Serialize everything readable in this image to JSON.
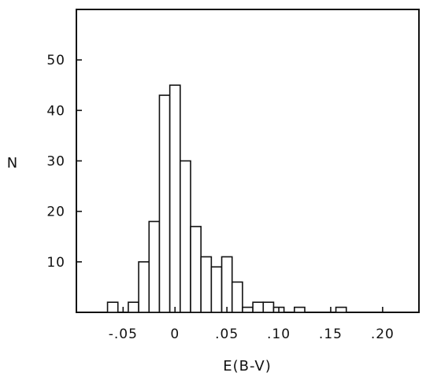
{
  "chart_data": {
    "type": "bar",
    "subtype": "histogram",
    "xlabel": "E(B-V)",
    "ylabel": "N",
    "xlim": [
      -0.095,
      0.235
    ],
    "ylim": [
      0,
      60
    ],
    "bin_width": 0.01,
    "grid": false,
    "legend": "none",
    "x_ticks": [
      {
        "value": -0.05,
        "label": "-.05"
      },
      {
        "value": 0,
        "label": "0"
      },
      {
        "value": 0.05,
        "label": ".05"
      },
      {
        "value": 0.1,
        "label": ".10"
      },
      {
        "value": 0.15,
        "label": ".15"
      },
      {
        "value": 0.2,
        "label": ".20"
      }
    ],
    "y_ticks": [
      {
        "value": 10,
        "label": "10"
      },
      {
        "value": 20,
        "label": "20"
      },
      {
        "value": 30,
        "label": "30"
      },
      {
        "value": 40,
        "label": "40"
      },
      {
        "value": 50,
        "label": "50"
      }
    ],
    "bins": [
      {
        "x_start": -0.065,
        "count": 2
      },
      {
        "x_start": -0.055,
        "count": 0
      },
      {
        "x_start": -0.045,
        "count": 2
      },
      {
        "x_start": -0.035,
        "count": 10
      },
      {
        "x_start": -0.025,
        "count": 18
      },
      {
        "x_start": -0.015,
        "count": 43
      },
      {
        "x_start": -0.005,
        "count": 45
      },
      {
        "x_start": 0.005,
        "count": 30
      },
      {
        "x_start": 0.015,
        "count": 17
      },
      {
        "x_start": 0.025,
        "count": 11
      },
      {
        "x_start": 0.035,
        "count": 9
      },
      {
        "x_start": 0.045,
        "count": 11
      },
      {
        "x_start": 0.055,
        "count": 6
      },
      {
        "x_start": 0.065,
        "count": 1
      },
      {
        "x_start": 0.075,
        "count": 2
      },
      {
        "x_start": 0.085,
        "count": 2
      },
      {
        "x_start": 0.095,
        "count": 1
      },
      {
        "x_start": 0.105,
        "count": 0
      },
      {
        "x_start": 0.115,
        "count": 1
      },
      {
        "x_start": 0.125,
        "count": 0
      },
      {
        "x_start": 0.135,
        "count": 0
      },
      {
        "x_start": 0.145,
        "count": 0
      },
      {
        "x_start": 0.155,
        "count": 1
      }
    ],
    "colors": {
      "bar_fill": "#ffffff",
      "line": "#111111"
    }
  }
}
